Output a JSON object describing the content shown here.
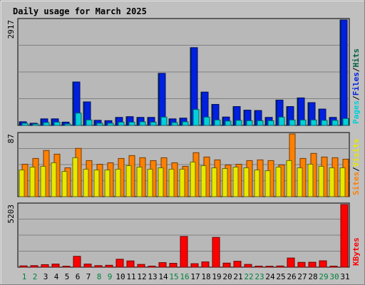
{
  "chart_data": {
    "type": "bar",
    "title": "Daily usage for March 2025",
    "days": [
      "1",
      "2",
      "3",
      "4",
      "5",
      "6",
      "7",
      "8",
      "9",
      "10",
      "11",
      "12",
      "13",
      "14",
      "15",
      "16",
      "17",
      "18",
      "19",
      "20",
      "21",
      "22",
      "23",
      "24",
      "25",
      "26",
      "27",
      "28",
      "29",
      "30",
      "31"
    ],
    "weekend_days": [
      "1",
      "2",
      "8",
      "9",
      "15",
      "16",
      "22",
      "23",
      "29",
      "30"
    ],
    "colors": {
      "background": "#c0c0c0",
      "plot": "#b8b8b8",
      "title": "#0000c8",
      "weekday_label": "#000000",
      "weekend_label": "#00823c",
      "hits": "#005f3c",
      "files": "#0020e0",
      "pages": "#00d0d8",
      "visits": "#e8e800",
      "sites": "#ff8000",
      "kbytes": "#ff0000"
    },
    "panels": [
      {
        "name": "hits",
        "max_label": "2917",
        "ylim": [
          0,
          2917
        ],
        "legend": [
          {
            "text": "Pages",
            "color": "#00d0d8"
          },
          {
            "text": "/",
            "color": "#000000"
          },
          {
            "text": "Files",
            "color": "#0020e0"
          },
          {
            "text": "/",
            "color": "#000000"
          },
          {
            "text": "Hits",
            "color": "#005f3c"
          }
        ],
        "series": [
          {
            "name": "Hits",
            "color": "#005f3c",
            "values": [
              100,
              60,
              180,
              180,
              90,
              1200,
              650,
              140,
              130,
              220,
              240,
              220,
              220,
              1440,
              180,
              200,
              2150,
              920,
              580,
              230,
              520,
              420,
              410,
              220,
              700,
              520,
              760,
              630,
              450,
              220,
              2917
            ]
          },
          {
            "name": "Files",
            "color": "#0020e0",
            "values": [
              100,
              60,
              180,
              180,
              90,
              1200,
              650,
              140,
              130,
              220,
              240,
              220,
              220,
              1440,
              180,
              200,
              2150,
              920,
              580,
              230,
              520,
              420,
              410,
              220,
              700,
              520,
              760,
              630,
              450,
              220,
              2917
            ]
          },
          {
            "name": "Pages",
            "color": "#00d0d8",
            "values": [
              60,
              40,
              80,
              90,
              40,
              340,
              150,
              60,
              60,
              90,
              90,
              100,
              90,
              230,
              80,
              100,
              440,
              230,
              150,
              120,
              140,
              130,
              130,
              130,
              230,
              150,
              150,
              150,
              140,
              140,
              190
            ]
          }
        ]
      },
      {
        "name": "visits",
        "max_label": "87",
        "ylim": [
          0,
          87
        ],
        "legend": [
          {
            "text": "Sites",
            "color": "#ff8000"
          },
          {
            "text": "/",
            "color": "#000000"
          },
          {
            "text": "Visits",
            "color": "#e8e800"
          }
        ],
        "series": [
          {
            "name": "Sites",
            "color": "#ff8000",
            "values": [
              45,
              53,
              64,
              59,
              40,
              67,
              50,
              45,
              47,
              53,
              57,
              54,
              50,
              54,
              47,
              42,
              61,
              55,
              51,
              44,
              45,
              50,
              51,
              50,
              44,
              87,
              53,
              60,
              55,
              54,
              52
            ]
          },
          {
            "name": "Visits",
            "color": "#e8e800",
            "values": [
              37,
              41,
              42,
              47,
              35,
              54,
              38,
              37,
              37,
              38,
              43,
              41,
              38,
              40,
              38,
              38,
              48,
              43,
              40,
              39,
              41,
              40,
              37,
              36,
              41,
              50,
              40,
              45,
              42,
              40,
              40
            ]
          }
        ]
      },
      {
        "name": "kbytes",
        "max_label": "5203",
        "ylim": [
          0,
          5203
        ],
        "legend": [
          {
            "text": "KBytes",
            "color": "#ff0000"
          }
        ],
        "series": [
          {
            "name": "KBytes",
            "color": "#ff0000",
            "values": [
              110,
              130,
              210,
              260,
              80,
              900,
              260,
              130,
              160,
              660,
              520,
              230,
              90,
              380,
              320,
              2550,
              290,
              440,
              2470,
              340,
              490,
              230,
              90,
              80,
              100,
              760,
              400,
              410,
              530,
              90,
              5203
            ]
          }
        ]
      }
    ]
  }
}
